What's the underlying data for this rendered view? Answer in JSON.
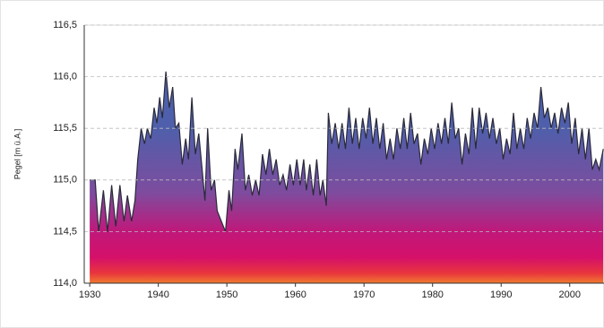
{
  "chart_data": {
    "type": "area",
    "y_label": "Pegel [m ü.A.]",
    "x": [
      1930.0,
      1930.8,
      1931.3,
      1932,
      1932.6,
      1933.2,
      1933.8,
      1934.4,
      1935,
      1935.5,
      1936.1,
      1936.6,
      1937,
      1937.5,
      1938,
      1938.4,
      1938.9,
      1939.4,
      1939.8,
      1940.2,
      1940.6,
      1941.1,
      1941.6,
      1942.1,
      1942.5,
      1943,
      1943.5,
      1944,
      1944.4,
      1944.9,
      1945.4,
      1945.9,
      1946.4,
      1946.8,
      1947.2,
      1947.7,
      1948.2,
      1948.6,
      1949.2,
      1949.8,
      1950.3,
      1950.7,
      1951.2,
      1951.6,
      1952.2,
      1952.7,
      1953.2,
      1953.7,
      1954.2,
      1954.7,
      1955.2,
      1955.7,
      1956.2,
      1956.7,
      1957.2,
      1957.7,
      1958.2,
      1958.7,
      1959.2,
      1959.7,
      1960.2,
      1960.7,
      1961.2,
      1961.6,
      1962.1,
      1962.6,
      1963.1,
      1963.6,
      1964.0,
      1964.5,
      1964.8,
      1965.3,
      1965.8,
      1966.3,
      1966.8,
      1967.3,
      1967.8,
      1968.3,
      1968.8,
      1969.3,
      1969.8,
      1970.3,
      1970.8,
      1971.3,
      1971.8,
      1972.3,
      1972.8,
      1973.3,
      1973.8,
      1974.3,
      1974.8,
      1975.3,
      1975.8,
      1976.3,
      1976.8,
      1977.3,
      1977.8,
      1978.3,
      1978.8,
      1979.3,
      1979.8,
      1980.3,
      1980.8,
      1981.3,
      1981.8,
      1982.3,
      1982.8,
      1983.3,
      1983.8,
      1984.3,
      1984.8,
      1985.3,
      1985.8,
      1986.3,
      1986.8,
      1987.3,
      1987.8,
      1988.3,
      1988.8,
      1989.3,
      1989.8,
      1990.3,
      1990.8,
      1991.3,
      1991.8,
      1992.3,
      1992.8,
      1993.3,
      1993.8,
      1994.3,
      1994.8,
      1995.3,
      1995.8,
      1996.3,
      1996.8,
      1997.3,
      1997.8,
      1998.3,
      1998.8,
      1999.3,
      1999.8,
      2000.3,
      2000.8,
      2001.3,
      2001.8,
      2002.3,
      2002.8,
      2003.3,
      2003.8,
      2004.3,
      2004.9
    ],
    "values": [
      115.0,
      115.0,
      114.5,
      114.9,
      114.5,
      114.95,
      114.55,
      114.95,
      114.6,
      114.85,
      114.6,
      114.8,
      115.2,
      115.5,
      115.35,
      115.5,
      115.4,
      115.7,
      115.55,
      115.8,
      115.6,
      116.05,
      115.7,
      115.9,
      115.5,
      115.55,
      115.15,
      115.4,
      115.2,
      115.8,
      115.25,
      115.45,
      115.1,
      114.8,
      115.5,
      114.9,
      115.0,
      114.7,
      114.6,
      114.5,
      114.9,
      114.7,
      115.3,
      115.1,
      115.45,
      114.9,
      115.05,
      114.85,
      115.0,
      114.85,
      115.25,
      115.05,
      115.3,
      115.05,
      115.2,
      114.95,
      115.05,
      114.9,
      115.15,
      114.95,
      115.2,
      114.95,
      115.2,
      114.9,
      115.15,
      114.85,
      115.2,
      114.85,
      115.0,
      114.75,
      115.65,
      115.35,
      115.55,
      115.3,
      115.55,
      115.3,
      115.7,
      115.35,
      115.6,
      115.3,
      115.6,
      115.4,
      115.7,
      115.35,
      115.6,
      115.3,
      115.55,
      115.2,
      115.4,
      115.2,
      115.5,
      115.3,
      115.6,
      115.3,
      115.65,
      115.35,
      115.45,
      115.15,
      115.4,
      115.25,
      115.5,
      115.3,
      115.55,
      115.35,
      115.6,
      115.35,
      115.75,
      115.4,
      115.5,
      115.15,
      115.45,
      115.25,
      115.7,
      115.3,
      115.7,
      115.45,
      115.65,
      115.4,
      115.6,
      115.35,
      115.5,
      115.2,
      115.4,
      115.25,
      115.65,
      115.3,
      115.5,
      115.3,
      115.6,
      115.4,
      115.65,
      115.5,
      115.9,
      115.6,
      115.7,
      115.5,
      115.65,
      115.45,
      115.7,
      115.55,
      115.75,
      115.35,
      115.6,
      115.25,
      115.5,
      115.2,
      115.5,
      115.1,
      115.2,
      115.1,
      115.3
    ],
    "line_color": "#2a2a3a",
    "xlim": [
      1929.2,
      2005
    ],
    "xticks": [
      1930,
      1940,
      1950,
      1960,
      1970,
      1980,
      1990,
      2000
    ],
    "ylim": [
      114.0,
      116.5
    ],
    "yticks": [
      {
        "value": 114.0,
        "label": "114,0"
      },
      {
        "value": 114.5,
        "label": "114,5"
      },
      {
        "value": 115.0,
        "label": "115,0"
      },
      {
        "value": 115.5,
        "label": "115,5"
      },
      {
        "value": 116.0,
        "label": "116,0"
      },
      {
        "value": 116.5,
        "label": "116,5"
      }
    ],
    "grid": true
  }
}
